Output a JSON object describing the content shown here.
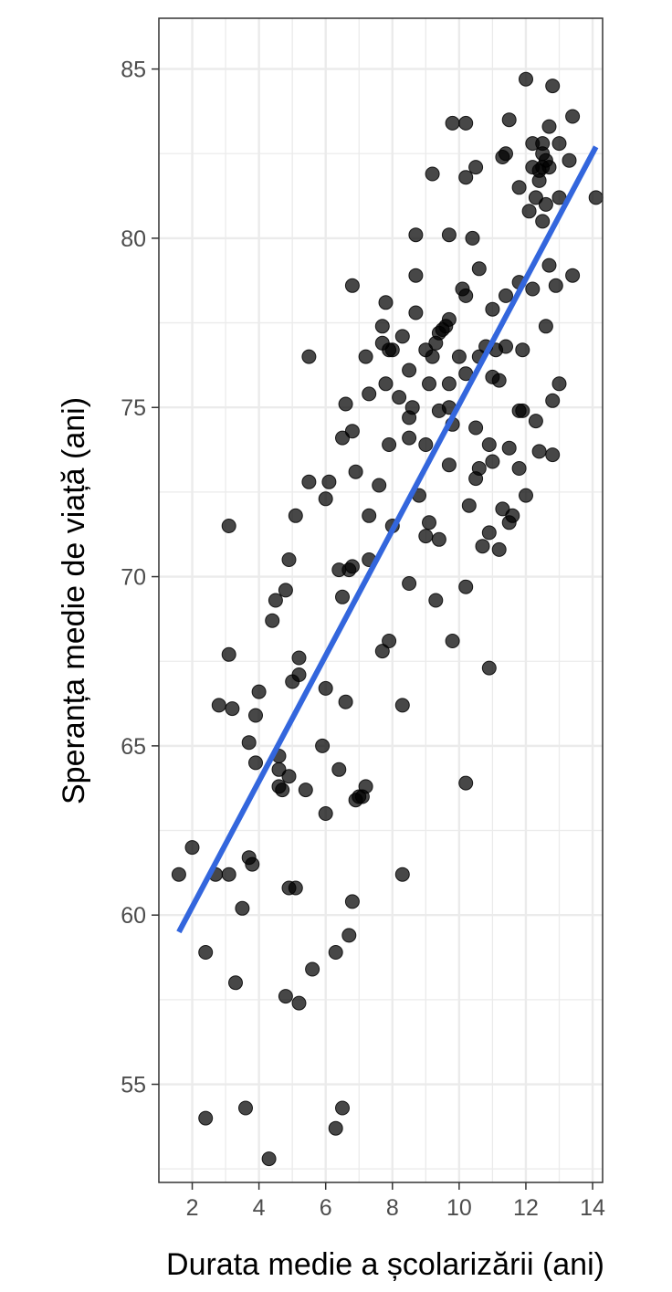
{
  "chart_data": {
    "type": "scatter",
    "xlabel": "Durata medie a școlarizării (ani)",
    "ylabel": "Speranța medie de viață (ani)",
    "xlim": [
      1.0,
      14.3
    ],
    "ylim": [
      52.1,
      86.5
    ],
    "x_ticks": [
      2,
      4,
      6,
      8,
      10,
      12,
      14
    ],
    "y_ticks": [
      55,
      60,
      65,
      70,
      75,
      80,
      85
    ],
    "x_tick_labels": [
      "2",
      "4",
      "6",
      "8",
      "10",
      "12",
      "14"
    ],
    "y_tick_labels": [
      "55",
      "60",
      "65",
      "70",
      "75",
      "80",
      "85"
    ],
    "grid": true,
    "colors": {
      "points": "#000000",
      "trend": "#3366dd",
      "grid": "#ebebeb",
      "panel_border": "#333333"
    },
    "trend_line": {
      "x": [
        1.6,
        14.1
      ],
      "y": [
        59.5,
        82.7
      ]
    },
    "points": [
      [
        1.6,
        61.2
      ],
      [
        2.0,
        62.0
      ],
      [
        2.4,
        58.9
      ],
      [
        2.4,
        54.0
      ],
      [
        2.7,
        61.2
      ],
      [
        2.8,
        66.2
      ],
      [
        3.1,
        61.2
      ],
      [
        3.1,
        71.5
      ],
      [
        3.1,
        67.7
      ],
      [
        3.2,
        66.1
      ],
      [
        3.3,
        58.0
      ],
      [
        3.5,
        60.2
      ],
      [
        3.6,
        54.3
      ],
      [
        3.7,
        65.1
      ],
      [
        3.7,
        61.7
      ],
      [
        3.8,
        61.5
      ],
      [
        3.9,
        65.9
      ],
      [
        3.9,
        64.5
      ],
      [
        4.0,
        66.6
      ],
      [
        4.3,
        52.8
      ],
      [
        4.4,
        68.7
      ],
      [
        4.5,
        69.3
      ],
      [
        4.6,
        64.3
      ],
      [
        4.6,
        63.8
      ],
      [
        4.6,
        64.7
      ],
      [
        4.7,
        63.7
      ],
      [
        4.8,
        69.6
      ],
      [
        4.8,
        57.6
      ],
      [
        4.9,
        70.5
      ],
      [
        4.9,
        64.1
      ],
      [
        4.9,
        60.8
      ],
      [
        5.0,
        66.9
      ],
      [
        5.1,
        71.8
      ],
      [
        5.1,
        60.8
      ],
      [
        5.2,
        67.1
      ],
      [
        5.2,
        67.6
      ],
      [
        5.2,
        57.4
      ],
      [
        5.4,
        63.7
      ],
      [
        5.5,
        72.8
      ],
      [
        5.5,
        76.5
      ],
      [
        5.6,
        58.4
      ],
      [
        5.9,
        65.0
      ],
      [
        6.0,
        72.3
      ],
      [
        6.0,
        66.7
      ],
      [
        6.0,
        63.0
      ],
      [
        6.1,
        72.8
      ],
      [
        6.3,
        58.9
      ],
      [
        6.3,
        53.7
      ],
      [
        6.4,
        70.2
      ],
      [
        6.4,
        64.3
      ],
      [
        6.5,
        74.1
      ],
      [
        6.5,
        69.4
      ],
      [
        6.5,
        54.3
      ],
      [
        6.6,
        75.1
      ],
      [
        6.6,
        66.3
      ],
      [
        6.7,
        70.2
      ],
      [
        6.7,
        59.4
      ],
      [
        6.8,
        74.3
      ],
      [
        6.8,
        78.6
      ],
      [
        6.8,
        70.3
      ],
      [
        6.8,
        60.4
      ],
      [
        6.9,
        73.1
      ],
      [
        6.9,
        63.4
      ],
      [
        7.0,
        63.5
      ],
      [
        7.1,
        63.5
      ],
      [
        7.2,
        76.5
      ],
      [
        7.2,
        63.8
      ],
      [
        7.3,
        75.4
      ],
      [
        7.3,
        71.8
      ],
      [
        7.3,
        70.5
      ],
      [
        7.6,
        72.7
      ],
      [
        7.7,
        77.4
      ],
      [
        7.7,
        76.9
      ],
      [
        7.7,
        67.8
      ],
      [
        7.8,
        78.1
      ],
      [
        7.8,
        75.7
      ],
      [
        7.9,
        76.7
      ],
      [
        7.9,
        73.9
      ],
      [
        7.9,
        68.1
      ],
      [
        8.0,
        76.7
      ],
      [
        8.0,
        71.5
      ],
      [
        8.2,
        75.3
      ],
      [
        8.3,
        77.1
      ],
      [
        8.3,
        66.2
      ],
      [
        8.3,
        61.2
      ],
      [
        8.5,
        76.1
      ],
      [
        8.5,
        74.7
      ],
      [
        8.5,
        74.1
      ],
      [
        8.5,
        69.8
      ],
      [
        8.6,
        75.0
      ],
      [
        8.7,
        80.1
      ],
      [
        8.7,
        78.9
      ],
      [
        8.7,
        77.8
      ],
      [
        8.8,
        72.4
      ],
      [
        9.0,
        76.7
      ],
      [
        9.0,
        71.2
      ],
      [
        9.1,
        75.7
      ],
      [
        9.1,
        71.6
      ],
      [
        9.2,
        81.9
      ],
      [
        9.2,
        76.5
      ],
      [
        9.3,
        76.9
      ],
      [
        9.3,
        69.3
      ],
      [
        9.4,
        77.2
      ],
      [
        9.4,
        74.9
      ],
      [
        9.4,
        71.1
      ],
      [
        9.5,
        77.3
      ],
      [
        9.6,
        77.4
      ],
      [
        9.7,
        80.1
      ],
      [
        9.7,
        77.6
      ],
      [
        9.7,
        75.7
      ],
      [
        9.7,
        75.0
      ],
      [
        9.7,
        73.3
      ],
      [
        9.8,
        74.5
      ],
      [
        9.8,
        68.1
      ],
      [
        9.8,
        83.4
      ],
      [
        10.0,
        76.5
      ],
      [
        10.1,
        78.5
      ],
      [
        10.2,
        83.4
      ],
      [
        10.2,
        81.8
      ],
      [
        10.2,
        78.3
      ],
      [
        10.2,
        76.0
      ],
      [
        10.2,
        69.7
      ],
      [
        10.2,
        63.9
      ],
      [
        10.3,
        72.1
      ],
      [
        10.4,
        80.0
      ],
      [
        10.5,
        82.1
      ],
      [
        10.5,
        74.4
      ],
      [
        10.5,
        72.9
      ],
      [
        10.6,
        79.1
      ],
      [
        10.6,
        76.5
      ],
      [
        10.6,
        73.2
      ],
      [
        10.7,
        70.9
      ],
      [
        10.8,
        76.8
      ],
      [
        10.9,
        73.9
      ],
      [
        10.9,
        71.3
      ],
      [
        10.9,
        67.3
      ],
      [
        11.0,
        77.9
      ],
      [
        11.0,
        75.9
      ],
      [
        11.0,
        73.4
      ],
      [
        11.1,
        76.7
      ],
      [
        11.2,
        75.8
      ],
      [
        11.2,
        70.8
      ],
      [
        11.3,
        82.4
      ],
      [
        11.3,
        72.0
      ],
      [
        11.4,
        82.5
      ],
      [
        11.4,
        78.3
      ],
      [
        11.4,
        76.8
      ],
      [
        11.5,
        83.5
      ],
      [
        11.5,
        73.8
      ],
      [
        11.5,
        71.6
      ],
      [
        11.6,
        71.8
      ],
      [
        11.8,
        81.5
      ],
      [
        11.8,
        78.7
      ],
      [
        11.8,
        74.9
      ],
      [
        11.8,
        73.2
      ],
      [
        11.9,
        76.7
      ],
      [
        12.0,
        84.7
      ],
      [
        12.0,
        72.4
      ],
      [
        12.1,
        80.8
      ],
      [
        12.2,
        82.8
      ],
      [
        12.2,
        82.1
      ],
      [
        12.2,
        78.5
      ],
      [
        12.3,
        81.2
      ],
      [
        12.3,
        74.6
      ],
      [
        12.4,
        81.7
      ],
      [
        12.4,
        73.7
      ],
      [
        12.5,
        82.8
      ],
      [
        12.5,
        82.5
      ],
      [
        12.5,
        82.1
      ],
      [
        12.5,
        80.5
      ],
      [
        12.6,
        82.3
      ],
      [
        12.6,
        81.0
      ],
      [
        12.6,
        77.4
      ],
      [
        12.7,
        83.3
      ],
      [
        12.7,
        82.1
      ],
      [
        12.7,
        79.2
      ],
      [
        12.8,
        84.5
      ],
      [
        12.8,
        75.2
      ],
      [
        12.8,
        73.6
      ],
      [
        12.9,
        78.6
      ],
      [
        13.0,
        82.8
      ],
      [
        13.0,
        81.2
      ],
      [
        13.0,
        75.7
      ],
      [
        13.3,
        82.3
      ],
      [
        13.4,
        83.6
      ],
      [
        13.4,
        78.9
      ],
      [
        14.1,
        81.2
      ],
      [
        12.4,
        82.0
      ],
      [
        11.9,
        74.9
      ],
      [
        9.0,
        73.9
      ]
    ]
  }
}
